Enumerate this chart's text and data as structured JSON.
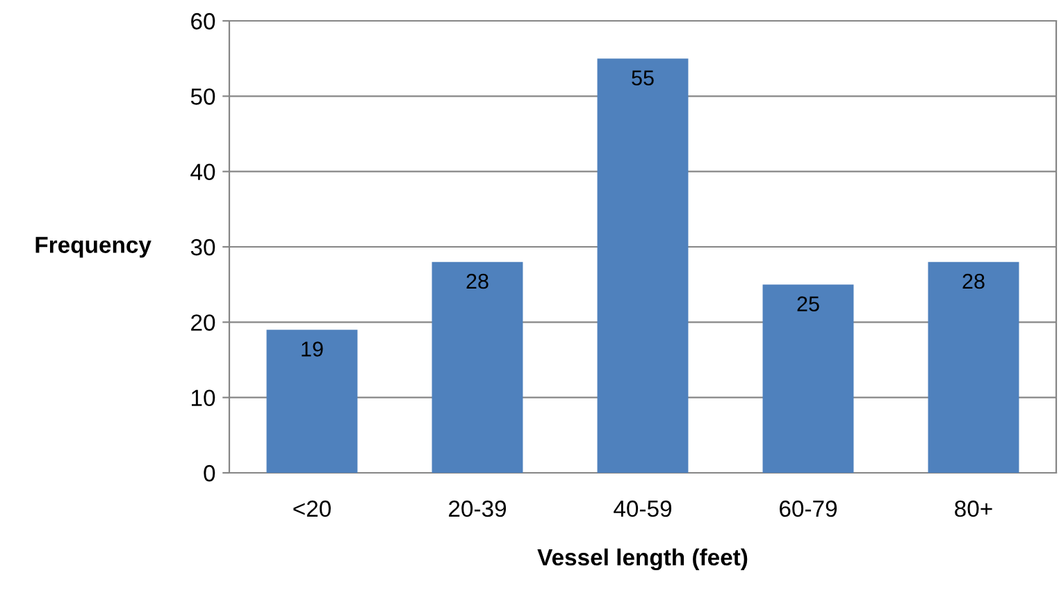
{
  "chart_data": {
    "type": "bar",
    "xlabel": "Vessel length (feet)",
    "ylabel": "Frequency",
    "categories": [
      "<20",
      "20-39",
      "40-59",
      "60-79",
      "80+"
    ],
    "values": [
      19,
      28,
      55,
      25,
      28
    ],
    "color": "#4f81bd",
    "ylim": [
      0,
      60
    ],
    "yticks": [
      0,
      10,
      20,
      30,
      40,
      50,
      60
    ],
    "grid": "y",
    "data_labels": true
  }
}
